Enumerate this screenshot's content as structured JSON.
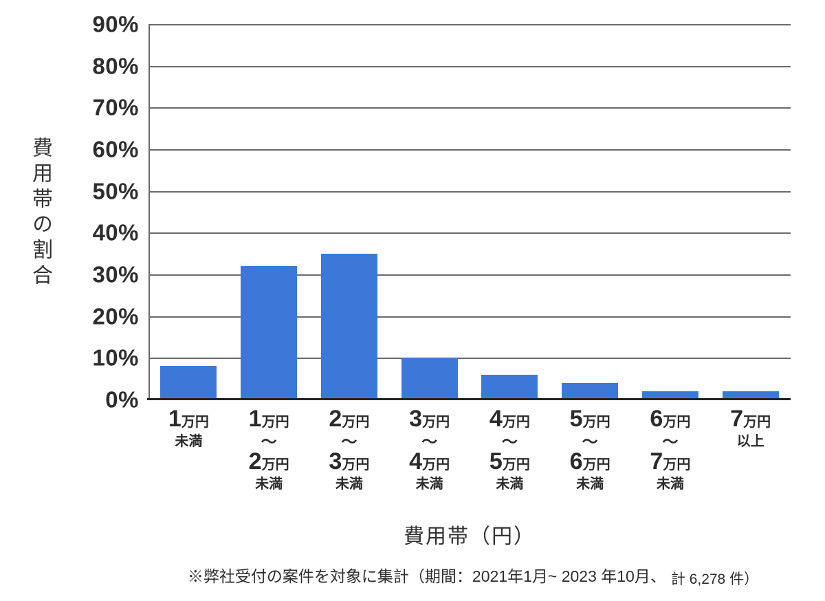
{
  "chart_data": {
    "type": "bar",
    "title": "",
    "xlabel": "費用帯（円）",
    "ylabel": "費用帯の割合",
    "ylim": [
      0,
      90
    ],
    "yticks": [
      0,
      10,
      20,
      30,
      40,
      50,
      60,
      70,
      80,
      90
    ],
    "ytick_suffix": "%",
    "grid": true,
    "legend": "none",
    "categories": [
      "1万円未満",
      "1万円〜2万円未満",
      "2万円〜3万円未満",
      "3万円〜4万円未満",
      "4万円〜5万円未満",
      "5万円〜6万円未満",
      "6万円〜7万円未満",
      "7万円以上"
    ],
    "values": [
      8,
      32,
      35,
      10,
      6,
      4,
      2,
      2
    ],
    "category_labels": [
      {
        "lines": [
          [
            {
              "text": "1",
              "style": "big"
            },
            {
              "text": "万円",
              "style": "small"
            }
          ],
          [
            {
              "text": "未満",
              "style": "small"
            }
          ]
        ]
      },
      {
        "lines": [
          [
            {
              "text": "1",
              "style": "big"
            },
            {
              "text": "万円",
              "style": "small"
            }
          ],
          [
            {
              "text": "〜",
              "style": "tilde"
            }
          ],
          [
            {
              "text": "2",
              "style": "big"
            },
            {
              "text": "万円",
              "style": "small"
            }
          ],
          [
            {
              "text": "未満",
              "style": "small"
            }
          ]
        ]
      },
      {
        "lines": [
          [
            {
              "text": "2",
              "style": "big"
            },
            {
              "text": "万円",
              "style": "small"
            }
          ],
          [
            {
              "text": "〜",
              "style": "tilde"
            }
          ],
          [
            {
              "text": "3",
              "style": "big"
            },
            {
              "text": "万円",
              "style": "small"
            }
          ],
          [
            {
              "text": "未満",
              "style": "small"
            }
          ]
        ]
      },
      {
        "lines": [
          [
            {
              "text": "3",
              "style": "big"
            },
            {
              "text": "万円",
              "style": "small"
            }
          ],
          [
            {
              "text": "〜",
              "style": "tilde"
            }
          ],
          [
            {
              "text": "4",
              "style": "big"
            },
            {
              "text": "万円",
              "style": "small"
            }
          ],
          [
            {
              "text": "未満",
              "style": "small"
            }
          ]
        ]
      },
      {
        "lines": [
          [
            {
              "text": "4",
              "style": "big"
            },
            {
              "text": "万円",
              "style": "small"
            }
          ],
          [
            {
              "text": "〜",
              "style": "tilde"
            }
          ],
          [
            {
              "text": "5",
              "style": "big"
            },
            {
              "text": "万円",
              "style": "small"
            }
          ],
          [
            {
              "text": "未満",
              "style": "small"
            }
          ]
        ]
      },
      {
        "lines": [
          [
            {
              "text": "5",
              "style": "big"
            },
            {
              "text": "万円",
              "style": "small"
            }
          ],
          [
            {
              "text": "〜",
              "style": "tilde"
            }
          ],
          [
            {
              "text": "6",
              "style": "big"
            },
            {
              "text": "万円",
              "style": "small"
            }
          ],
          [
            {
              "text": "未満",
              "style": "small"
            }
          ]
        ]
      },
      {
        "lines": [
          [
            {
              "text": "6",
              "style": "big"
            },
            {
              "text": "万円",
              "style": "small"
            }
          ],
          [
            {
              "text": "〜",
              "style": "tilde"
            }
          ],
          [
            {
              "text": "7",
              "style": "big"
            },
            {
              "text": "万円",
              "style": "small"
            }
          ],
          [
            {
              "text": "未満",
              "style": "small"
            }
          ]
        ]
      },
      {
        "lines": [
          [
            {
              "text": "7",
              "style": "big"
            },
            {
              "text": "万円",
              "style": "small"
            }
          ],
          [
            {
              "text": "以上",
              "style": "small"
            }
          ]
        ]
      }
    ],
    "colors": {
      "bar": "#3c78d8",
      "grid": "#6b6b6b",
      "axis": "#222222",
      "text": "#333333"
    }
  },
  "footnote": {
    "part1": "※弊社受付の案件を対象に集計（期間：2021年1月~ 2023 年10月、",
    "part2": "計 6,278 件）"
  }
}
